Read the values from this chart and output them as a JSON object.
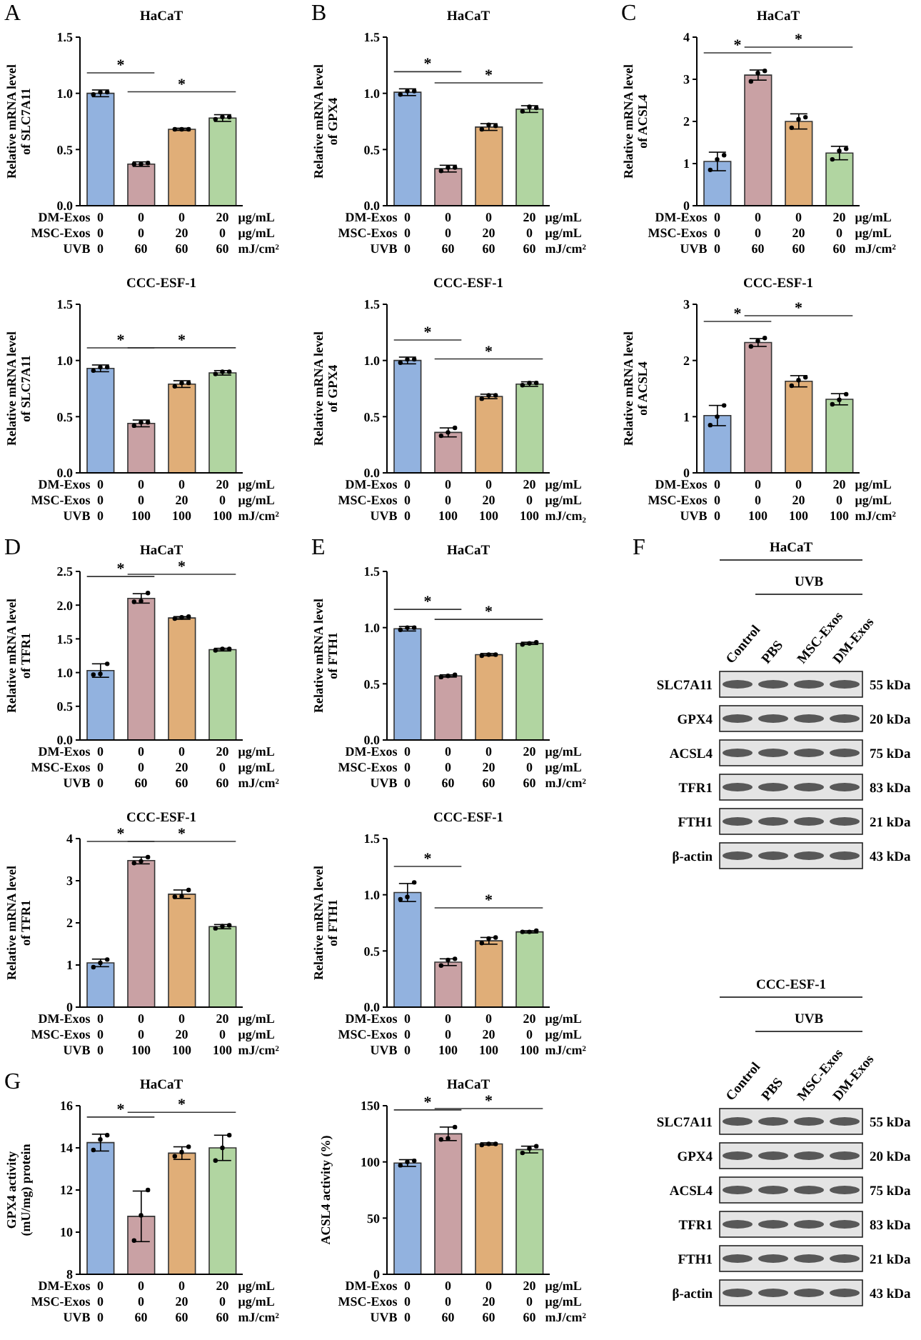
{
  "chart_data": [
    {
      "type": "bar",
      "title": "HaCaT",
      "ylabel": "Relative mRNA level\nof SLC7A11",
      "categories": [
        "0\n0\n0",
        "0\n0\n60",
        "0\n20\n60",
        "20\n0\n60"
      ],
      "ylim": [
        0,
        1.5
      ],
      "yticks": [
        {
          "value": 0,
          "label": "0.0"
        },
        0.5,
        {
          "value": 1,
          "label": "1.0"
        },
        1.5
      ],
      "annotations": [
        "DM-Exos",
        "MSC-Exos",
        "UVB",
        "μg/mL",
        "μg/mL",
        "mJ/cm²",
        "*",
        "*",
        "A"
      ],
      "series": [
        {
          "type": "bar",
          "values": [
            1.0,
            0.37,
            0.68,
            0.78
          ],
          "errors": [
            0.03,
            0.02,
            0.01,
            0.03
          ],
          "colors": [
            "#92b2df",
            "#c9a1a4",
            "#e0ae78",
            "#b1d5a1"
          ]
        },
        {
          "type": "scatter",
          "color": "#000000",
          "x": [
            "0\n0\n0",
            "0\n0\n0",
            "0\n0\n0",
            "0\n0\n60",
            "0\n0\n60",
            "0\n0\n60",
            "0\n20\n60",
            "0\n20\n60",
            "0\n20\n60",
            "20\n0\n60",
            "20\n0\n60",
            "20\n0\n60"
          ],
          "values": [
            0.99,
            1.01,
            1.01,
            0.37,
            0.37,
            0.38,
            0.68,
            0.68,
            0.68,
            0.77,
            0.79,
            0.79
          ]
        }
      ]
    },
    {
      "type": "bar",
      "title": "HaCaT",
      "ylabel": "Relative mRNA level\nof GPX4",
      "categories": [
        "0\n0\n0",
        "0\n0\n60",
        "0\n20\n60",
        "20\n0\n60"
      ],
      "ylim": [
        0,
        1.5
      ],
      "yticks": [
        {
          "value": 0,
          "label": "0.0"
        },
        0.5,
        {
          "value": 1,
          "label": "1.0"
        },
        1.5
      ],
      "annotations": [
        "DM-Exos",
        "MSC-Exos",
        "UVB",
        "μg/mL",
        "μg/mL",
        "mJ/cm²",
        "*",
        "*",
        "B"
      ],
      "series": [
        {
          "type": "bar",
          "values": [
            1.01,
            0.33,
            0.7,
            0.86
          ],
          "errors": [
            0.03,
            0.03,
            0.03,
            0.03
          ],
          "colors": [
            "#92b2df",
            "#c9a1a4",
            "#e0ae78",
            "#b1d5a1"
          ]
        },
        {
          "type": "scatter",
          "color": "#000000",
          "x": [
            "0\n0\n0",
            "0\n0\n0",
            "0\n0\n0",
            "0\n0\n60",
            "0\n0\n60",
            "0\n0\n60",
            "0\n20\n60",
            "0\n20\n60",
            "0\n20\n60",
            "20\n0\n60",
            "20\n0\n60",
            "20\n0\n60"
          ],
          "values": [
            0.99,
            1.02,
            1.02,
            0.31,
            0.34,
            0.34,
            0.68,
            0.72,
            0.71,
            0.84,
            0.88,
            0.87
          ]
        }
      ]
    },
    {
      "type": "bar",
      "title": "HaCaT",
      "ylabel": "Relative mRNA level\nof ACSL4",
      "categories": [
        "0\n0\n0",
        "0\n0\n60",
        "0\n20\n60",
        "20\n0\n60"
      ],
      "ylim": [
        0,
        4
      ],
      "yticks": [
        0,
        1,
        2,
        3,
        4
      ],
      "annotations": [
        "DM-Exos",
        "MSC-Exos",
        "UVB",
        "μg/mL",
        "μg/mL",
        "mJ/cm²",
        "*",
        "*",
        "C"
      ],
      "series": [
        {
          "type": "bar",
          "values": [
            1.05,
            3.1,
            2.0,
            1.25
          ],
          "errors": [
            0.22,
            0.12,
            0.18,
            0.16
          ],
          "colors": [
            "#92b2df",
            "#c9a1a4",
            "#e0ae78",
            "#b1d5a1"
          ]
        },
        {
          "type": "scatter",
          "color": "#000000",
          "x": [
            "0\n0\n0",
            "0\n0\n0",
            "0\n0\n0",
            "0\n0\n60",
            "0\n0\n60",
            "0\n0\n60",
            "0\n20\n60",
            "0\n20\n60",
            "0\n20\n60",
            "20\n0\n60",
            "20\n0\n60",
            "20\n0\n60"
          ],
          "values": [
            0.85,
            1.1,
            1.2,
            2.95,
            3.15,
            3.2,
            1.85,
            2.05,
            2.1,
            1.1,
            1.3,
            1.35
          ]
        }
      ]
    },
    {
      "type": "bar",
      "title": "CCC-ESF-1",
      "ylabel": "Relative mRNA level\nof SLC7A11",
      "categories": [
        "0\n0\n0",
        "0\n0\n100",
        "0\n20\n100",
        "20\n0\n100"
      ],
      "ylim": [
        0,
        1.5
      ],
      "yticks": [
        {
          "value": 0,
          "label": "0.0"
        },
        0.5,
        {
          "value": 1,
          "label": "1.0"
        },
        1.5
      ],
      "annotations": [
        "DM-Exos",
        "MSC-Exos",
        "UVB",
        "μg/mL",
        "μg/mL",
        "mJ/cm²",
        "*",
        "*"
      ],
      "series": [
        {
          "type": "bar",
          "values": [
            0.93,
            0.44,
            0.79,
            0.89
          ],
          "errors": [
            0.03,
            0.03,
            0.03,
            0.02
          ],
          "colors": [
            "#92b2df",
            "#c9a1a4",
            "#e0ae78",
            "#b1d5a1"
          ]
        },
        {
          "type": "scatter",
          "color": "#000000",
          "x": [
            "0\n0\n0",
            "0\n0\n0",
            "0\n0\n0",
            "0\n0\n100",
            "0\n0\n100",
            "0\n0\n100",
            "0\n20\n100",
            "0\n20\n100",
            "0\n20\n100",
            "20\n0\n100",
            "20\n0\n100",
            "20\n0\n100"
          ],
          "values": [
            0.91,
            0.94,
            0.94,
            0.42,
            0.45,
            0.45,
            0.77,
            0.8,
            0.8,
            0.88,
            0.9,
            0.9
          ]
        }
      ]
    },
    {
      "type": "bar",
      "title": "CCC-ESF-1",
      "ylabel": "Relative mRNA level\nof GPX4",
      "categories": [
        "0\n0\n0",
        "0\n0\n100",
        "0\n20\n100",
        "20\n0\n100"
      ],
      "ylim": [
        0,
        1.5
      ],
      "yticks": [
        {
          "value": 0,
          "label": "0.0"
        },
        0.5,
        {
          "value": 1,
          "label": "1.0"
        },
        1.5
      ],
      "annotations": [
        "DM-Exos",
        "MSC-Exos",
        "UVB",
        "μg/mL",
        "μg/mL",
        "mJ/cm₂",
        "*",
        "*"
      ],
      "series": [
        {
          "type": "bar",
          "values": [
            1.0,
            0.36,
            0.68,
            0.79
          ],
          "errors": [
            0.03,
            0.04,
            0.02,
            0.02
          ],
          "colors": [
            "#92b2df",
            "#c9a1a4",
            "#e0ae78",
            "#b1d5a1"
          ]
        },
        {
          "type": "scatter",
          "color": "#000000",
          "x": [
            "0\n0\n0",
            "0\n0\n0",
            "0\n0\n0",
            "0\n0\n100",
            "0\n0\n100",
            "0\n0\n100",
            "0\n20\n100",
            "0\n20\n100",
            "0\n20\n100",
            "20\n0\n100",
            "20\n0\n100",
            "20\n0\n100"
          ],
          "values": [
            0.98,
            1.01,
            1.01,
            0.33,
            0.36,
            0.4,
            0.66,
            0.69,
            0.69,
            0.78,
            0.8,
            0.8
          ]
        }
      ]
    },
    {
      "type": "bar",
      "title": "CCC-ESF-1",
      "ylabel": "Relative  mRNA level\nof ACSL4",
      "categories": [
        "0\n0\n0",
        "0\n0\n100",
        "0\n20\n100",
        "20\n0\n100"
      ],
      "ylim": [
        0,
        3
      ],
      "yticks": [
        0,
        1,
        2,
        3
      ],
      "annotations": [
        "DM-Exos",
        "MSC-Exos",
        "UVB",
        "μg/mL",
        "μg/mL",
        "mJ/cm²",
        "*",
        "*"
      ],
      "series": [
        {
          "type": "bar",
          "values": [
            1.02,
            2.32,
            1.63,
            1.31
          ],
          "errors": [
            0.18,
            0.07,
            0.1,
            0.1
          ],
          "colors": [
            "#92b2df",
            "#c9a1a4",
            "#e0ae78",
            "#b1d5a1"
          ]
        },
        {
          "type": "scatter",
          "color": "#000000",
          "x": [
            "0\n0\n0",
            "0\n0\n0",
            "0\n0\n0",
            "0\n0\n100",
            "0\n0\n100",
            "0\n0\n100",
            "0\n20\n100",
            "0\n20\n100",
            "0\n20\n100",
            "20\n0\n100",
            "20\n0\n100",
            "20\n0\n100"
          ],
          "values": [
            0.85,
            1.0,
            1.2,
            2.25,
            2.35,
            2.4,
            1.55,
            1.65,
            1.7,
            1.22,
            1.3,
            1.4
          ]
        }
      ]
    },
    {
      "type": "bar",
      "title": "HaCaT",
      "ylabel": "Relative mRNA level\nof TFR1",
      "categories": [
        "0\n0\n0",
        "0\n0\n60",
        "0\n20\n60",
        "20\n0\n60"
      ],
      "ylim": [
        0,
        2.5
      ],
      "yticks": [
        {
          "value": 0,
          "label": "0.0"
        },
        0.5,
        {
          "value": 1,
          "label": "1.0"
        },
        1.5,
        {
          "value": 2,
          "label": "2.0"
        },
        2.5
      ],
      "annotations": [
        "DM-Exos",
        "MSC-Exos",
        "UVB",
        "μg/mL",
        "μg/mL",
        "mJ/cm²",
        "*",
        "*",
        "D"
      ],
      "series": [
        {
          "type": "bar",
          "values": [
            1.03,
            2.1,
            1.81,
            1.34
          ],
          "errors": [
            0.1,
            0.07,
            0.02,
            0.02
          ],
          "colors": [
            "#92b2df",
            "#c9a1a4",
            "#e0ae78",
            "#b1d5a1"
          ]
        },
        {
          "type": "scatter",
          "color": "#000000",
          "x": [
            "0\n0\n0",
            "0\n0\n0",
            "0\n0\n0",
            "0\n0\n60",
            "0\n0\n60",
            "0\n0\n60",
            "0\n20\n60",
            "0\n20\n60",
            "0\n20\n60",
            "20\n0\n60",
            "20\n0\n60",
            "20\n0\n60"
          ],
          "values": [
            0.97,
            0.98,
            1.13,
            2.05,
            2.06,
            2.18,
            1.8,
            1.82,
            1.83,
            1.33,
            1.35,
            1.35
          ]
        }
      ]
    },
    {
      "type": "bar",
      "title": "HaCaT",
      "ylabel": "Relative mRNA level\nof FTH1",
      "categories": [
        "0\n0\n0",
        "0\n0\n60",
        "0\n20\n60",
        "20\n0\n60"
      ],
      "ylim": [
        0,
        1.5
      ],
      "yticks": [
        {
          "value": 0,
          "label": "0.0"
        },
        0.5,
        {
          "value": 1,
          "label": "1.0"
        },
        1.5
      ],
      "annotations": [
        "DM-Exos",
        "MSC-Exos",
        "UVB",
        "μg/mL",
        "μg/mL",
        "mJ/cm²",
        "*",
        "*",
        "E"
      ],
      "series": [
        {
          "type": "bar",
          "values": [
            0.99,
            0.57,
            0.76,
            0.86
          ],
          "errors": [
            0.02,
            0.01,
            0.01,
            0.01
          ],
          "colors": [
            "#92b2df",
            "#c9a1a4",
            "#e0ae78",
            "#b1d5a1"
          ]
        },
        {
          "type": "scatter",
          "color": "#000000",
          "x": [
            "0\n0\n0",
            "0\n0\n0",
            "0\n0\n0",
            "0\n0\n60",
            "0\n0\n60",
            "0\n0\n60",
            "0\n20\n60",
            "0\n20\n60",
            "0\n20\n60",
            "20\n0\n60",
            "20\n0\n60",
            "20\n0\n60"
          ],
          "values": [
            0.98,
            1.0,
            1.0,
            0.56,
            0.57,
            0.58,
            0.75,
            0.76,
            0.76,
            0.85,
            0.86,
            0.87
          ]
        }
      ]
    },
    {
      "type": "other",
      "title": "HaCaT",
      "annotations": [
        "UVB",
        "Control",
        "PBS",
        "MSC-Exos",
        "DM-Exos",
        "SLC7A11",
        "GPX4",
        "ACSL4",
        "TFR1",
        "FTH1",
        "β-actin",
        "55 kDa",
        "20 kDa",
        "75 kDa",
        "83 kDa",
        "21 kDa",
        "43 kDa",
        "F"
      ]
    },
    {
      "type": "bar",
      "title": "CCC-ESF-1",
      "ylabel": "Relative mRNA level\nof TFR1",
      "categories": [
        "0\n0\n0",
        "0\n0\n100",
        "0\n20\n100",
        "20\n0\n100"
      ],
      "ylim": [
        0,
        4
      ],
      "yticks": [
        0,
        1,
        2,
        3,
        4
      ],
      "annotations": [
        "DM-Exos",
        "MSC-Exos",
        "UVB",
        "μg/mL",
        "μg/mL",
        "mJ/cm²",
        "*",
        "*"
      ],
      "series": [
        {
          "type": "bar",
          "values": [
            1.05,
            3.48,
            2.68,
            1.91
          ],
          "errors": [
            0.09,
            0.08,
            0.1,
            0.05
          ],
          "colors": [
            "#92b2df",
            "#c9a1a4",
            "#e0ae78",
            "#b1d5a1"
          ]
        },
        {
          "type": "scatter",
          "color": "#000000",
          "x": [
            "0\n0\n0",
            "0\n0\n0",
            "0\n0\n0",
            "0\n0\n100",
            "0\n0\n100",
            "0\n0\n100",
            "0\n20\n100",
            "0\n20\n100",
            "0\n20\n100",
            "20\n0\n100",
            "20\n0\n100",
            "20\n0\n100"
          ],
          "values": [
            0.95,
            1.05,
            1.13,
            3.42,
            3.46,
            3.56,
            2.62,
            2.63,
            2.78,
            1.87,
            1.92,
            1.94
          ]
        }
      ]
    },
    {
      "type": "bar",
      "title": "CCC-ESF-1",
      "ylabel": "Relative mRNA level\nof FTH1",
      "categories": [
        "0\n0\n0",
        "0\n0\n100",
        "0\n20\n100",
        "20\n0\n100"
      ],
      "ylim": [
        0,
        1.5
      ],
      "yticks": [
        {
          "value": 0,
          "label": "0.0"
        },
        0.5,
        {
          "value": 1,
          "label": "1.0"
        },
        1.5
      ],
      "annotations": [
        "DM-Exos",
        "MSC-Exos",
        "UVB",
        "μg/mL",
        "μg/mL",
        "mJ/cm²",
        "*",
        "*"
      ],
      "series": [
        {
          "type": "bar",
          "values": [
            1.02,
            0.4,
            0.59,
            0.67
          ],
          "errors": [
            0.08,
            0.03,
            0.03,
            0.01
          ],
          "colors": [
            "#92b2df",
            "#c9a1a4",
            "#e0ae78",
            "#b1d5a1"
          ]
        },
        {
          "type": "scatter",
          "color": "#000000",
          "x": [
            "0\n0\n0",
            "0\n0\n0",
            "0\n0\n0",
            "0\n0\n100",
            "0\n0\n100",
            "0\n0\n100",
            "0\n20\n100",
            "0\n20\n100",
            "0\n20\n100",
            "20\n0\n100",
            "20\n0\n100",
            "20\n0\n100"
          ],
          "values": [
            0.96,
            0.98,
            1.11,
            0.37,
            0.42,
            0.43,
            0.57,
            0.61,
            0.62,
            0.67,
            0.67,
            0.68
          ]
        }
      ]
    },
    {
      "type": "other",
      "title": "CCC-ESF-1",
      "annotations": [
        "UVB",
        "Control",
        "PBS",
        "MSC-Exos",
        "DM-Exos",
        "SLC7A11",
        "GPX4",
        "ACSL4",
        "TFR1",
        "FTH1",
        "β-actin",
        "55 kDa",
        "20 kDa",
        "75 kDa",
        "83 kDa",
        "21 kDa",
        "43 kDa"
      ]
    },
    {
      "type": "bar",
      "title": "HaCaT",
      "ylabel": "GPX4 activity\n(mU/mg) protein",
      "categories": [
        "0\n0\n0",
        "0\n0\n60",
        "0\n20\n60",
        "20\n0\n60"
      ],
      "ylim": [
        8,
        16
      ],
      "yticks": [
        8,
        10,
        12,
        14,
        16
      ],
      "annotations": [
        "DM-Exos",
        "MSC-Exos",
        "UVB",
        "μg/mL",
        "μg/mL",
        "mJ/cm²",
        "*",
        "*",
        "G"
      ],
      "series": [
        {
          "type": "bar",
          "values": [
            14.25,
            10.75,
            13.75,
            14.0
          ],
          "errors": [
            0.4,
            1.2,
            0.3,
            0.6
          ],
          "colors": [
            "#92b2df",
            "#c9a1a4",
            "#e0ae78",
            "#b1d5a1"
          ]
        },
        {
          "type": "scatter",
          "color": "#000000",
          "x": [
            "0\n0\n0",
            "0\n0\n0",
            "0\n0\n0",
            "0\n0\n60",
            "0\n0\n60",
            "0\n0\n60",
            "0\n20\n60",
            "0\n20\n60",
            "0\n20\n60",
            "20\n0\n60",
            "20\n0\n60",
            "20\n0\n60"
          ],
          "values": [
            13.9,
            14.4,
            14.6,
            9.6,
            10.8,
            12.0,
            13.6,
            13.8,
            14.05,
            13.4,
            14.0,
            14.6
          ]
        }
      ]
    },
    {
      "type": "bar",
      "title": "HaCaT",
      "ylabel": "ACSL4 activity (%)",
      "categories": [
        "0\n0\n0",
        "0\n0\n60",
        "0\n20\n60",
        "20\n0\n60"
      ],
      "ylim": [
        0,
        150
      ],
      "yticks": [
        0,
        50,
        100,
        150
      ],
      "annotations": [
        "DM-Exos",
        "MSC-Exos",
        "UVB",
        "μg/mL",
        "μg/mL",
        "mJ/cm²",
        "*",
        "*"
      ],
      "series": [
        {
          "type": "bar",
          "values": [
            99,
            125,
            116,
            111
          ],
          "errors": [
            3,
            6,
            1,
            3
          ],
          "colors": [
            "#92b2df",
            "#c9a1a4",
            "#e0ae78",
            "#b1d5a1"
          ]
        },
        {
          "type": "scatter",
          "color": "#000000",
          "x": [
            "0\n0\n0",
            "0\n0\n0",
            "0\n0\n0",
            "0\n0\n60",
            "0\n0\n60",
            "0\n0\n60",
            "0\n20\n60",
            "0\n20\n60",
            "0\n20\n60",
            "20\n0\n60",
            "20\n0\n60",
            "20\n0\n60"
          ],
          "values": [
            97,
            100,
            101,
            120,
            121,
            131,
            115,
            116,
            116,
            108,
            112,
            114
          ]
        }
      ]
    }
  ]
}
